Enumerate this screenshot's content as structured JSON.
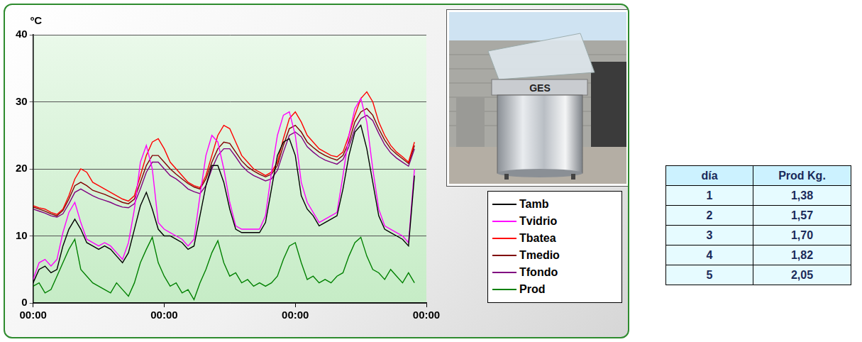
{
  "chart_data": {
    "type": "line",
    "y_label": "ºC",
    "x": [
      0,
      2,
      4,
      6,
      8,
      10,
      12,
      14,
      16,
      18,
      20,
      22,
      24,
      26,
      28,
      30,
      32,
      34,
      36,
      38,
      40,
      42,
      44,
      46,
      48,
      50,
      52,
      54,
      56,
      58,
      60,
      62,
      64,
      66,
      68,
      70,
      72,
      74,
      76,
      78,
      80,
      82,
      84,
      86,
      88,
      90,
      92,
      94,
      96,
      98,
      100,
      102,
      104,
      106,
      108,
      110,
      112,
      114,
      116,
      118,
      120,
      122,
      124,
      126,
      128
    ],
    "xlim": [
      0,
      132
    ],
    "xticks": [
      {
        "value": 0,
        "label": "00:00"
      },
      {
        "value": 44,
        "label": "00:00"
      },
      {
        "value": 88,
        "label": "00:00"
      },
      {
        "value": 132,
        "label": "00:00"
      }
    ],
    "ylim": [
      0,
      40
    ],
    "yticks": [
      0,
      10,
      20,
      30,
      40
    ],
    "grid": true,
    "legend": "bottom-right",
    "series": [
      {
        "name": "Tamb",
        "color": "#000000",
        "values": [
          3,
          5,
          5.5,
          4.5,
          5,
          8.5,
          11,
          12.5,
          11,
          9,
          8.5,
          8,
          8.5,
          8,
          7,
          6,
          7.5,
          11,
          14.5,
          16.5,
          14,
          11,
          10,
          10,
          9.5,
          9,
          8,
          8.5,
          13,
          17.5,
          20.5,
          20.5,
          18,
          14,
          11,
          10.5,
          10.5,
          10.5,
          10.5,
          12,
          17,
          22,
          24,
          24.5,
          22,
          16,
          14,
          13,
          11.5,
          12,
          12.5,
          13,
          17,
          22,
          25.5,
          26.5,
          23,
          18,
          13,
          11,
          10.5,
          10,
          9.5,
          8.5,
          19
        ]
      },
      {
        "name": "Tvidrio",
        "color": "#ff00ff",
        "values": [
          3.5,
          6,
          6.5,
          5.5,
          6.5,
          10.5,
          13.5,
          15,
          12,
          9.5,
          9,
          8.5,
          9,
          8.5,
          7.5,
          6.5,
          9,
          14,
          21,
          23.5,
          20,
          12,
          11,
          10.5,
          10,
          9.5,
          8.5,
          9.5,
          16,
          22,
          25,
          24,
          20,
          15,
          11.5,
          11,
          11,
          11,
          11,
          13,
          19.5,
          25,
          28,
          28.5,
          25,
          18,
          15,
          13.5,
          12,
          12.5,
          13,
          13.5,
          19,
          25,
          29,
          30.5,
          27,
          20,
          14,
          11.5,
          11,
          10.5,
          10,
          9,
          20
        ]
      },
      {
        "name": "Tbatea",
        "color": "#ff0000",
        "values": [
          14.5,
          14.2,
          14,
          13.5,
          13.2,
          14,
          16,
          18.5,
          20,
          19.5,
          18,
          17.5,
          17,
          16.5,
          16,
          15.5,
          15.2,
          16,
          19,
          22,
          24,
          24.5,
          23,
          21,
          20,
          19,
          18,
          17.5,
          17.2,
          19,
          22,
          25,
          26.5,
          26,
          24,
          22,
          21,
          20,
          19.5,
          19,
          19.5,
          21,
          24.5,
          27.5,
          28.5,
          27,
          25,
          24,
          23,
          22.5,
          22,
          21.8,
          22.5,
          25,
          28,
          30.5,
          31.5,
          30,
          27,
          25,
          23.5,
          22.5,
          21.8,
          21,
          24
        ]
      },
      {
        "name": "Tmedio",
        "color": "#800000",
        "values": [
          14.3,
          14,
          13.7,
          13.3,
          13,
          13.8,
          15.5,
          17.5,
          18,
          17.5,
          16.8,
          16.5,
          16.2,
          15.8,
          15.4,
          15,
          14.8,
          15.5,
          18,
          20.5,
          22,
          22,
          21,
          20,
          19.2,
          18.5,
          17.8,
          17.3,
          17,
          18.5,
          21,
          23,
          24,
          23.8,
          22.5,
          21.2,
          20.3,
          19.7,
          19.2,
          18.8,
          19.2,
          20.5,
          23.5,
          26,
          26.5,
          25.5,
          24,
          23.2,
          22.5,
          22,
          21.6,
          21.3,
          22,
          24,
          27,
          28.5,
          29,
          28,
          26,
          24.3,
          23,
          22.2,
          21.5,
          20.8,
          23.5
        ]
      },
      {
        "name": "Tfondo",
        "color": "#800080",
        "values": [
          14,
          13.7,
          13.4,
          13,
          12.8,
          13.3,
          14.8,
          16.5,
          17,
          16.5,
          16,
          15.6,
          15.3,
          15,
          14.6,
          14.3,
          14.2,
          14.8,
          17,
          19.5,
          21,
          21,
          20,
          19,
          18.5,
          17.8,
          17,
          16.6,
          16.3,
          17.5,
          20,
          22,
          23,
          23,
          21.8,
          20.5,
          19.6,
          19,
          18.6,
          18.2,
          18.5,
          19.8,
          22.5,
          25,
          25.5,
          24.8,
          23.3,
          22.5,
          21.8,
          21.3,
          21,
          20.7,
          21.4,
          23.3,
          26,
          27.5,
          28,
          27.2,
          25.3,
          23.6,
          22.4,
          21.6,
          21,
          20.4,
          23
        ]
      },
      {
        "name": "Prod",
        "color": "#008000",
        "values": [
          2.5,
          3,
          1.5,
          2,
          4,
          6,
          8,
          9.5,
          5,
          4,
          3,
          2.5,
          2,
          1.5,
          3,
          2,
          1,
          3,
          6,
          8,
          9.8,
          6,
          4,
          2.5,
          3,
          1.5,
          2,
          0.5,
          3,
          5,
          7.5,
          9.3,
          6,
          4,
          4.5,
          3,
          3.5,
          2.5,
          3,
          2.5,
          3,
          4,
          6.5,
          8.5,
          9,
          6,
          3.5,
          4,
          3,
          3.5,
          3,
          4,
          4.5,
          7,
          9,
          9.8,
          7,
          5,
          4.5,
          3.5,
          5,
          4,
          3,
          4.5,
          3
        ]
      }
    ]
  },
  "photo": {
    "label": "GES"
  },
  "table": {
    "header": [
      "día",
      "Prod Kg."
    ],
    "rows": [
      [
        "1",
        "1,38"
      ],
      [
        "2",
        "1,57"
      ],
      [
        "3",
        "1,70"
      ],
      [
        "4",
        "1,82"
      ],
      [
        "5",
        "2,05"
      ]
    ]
  }
}
